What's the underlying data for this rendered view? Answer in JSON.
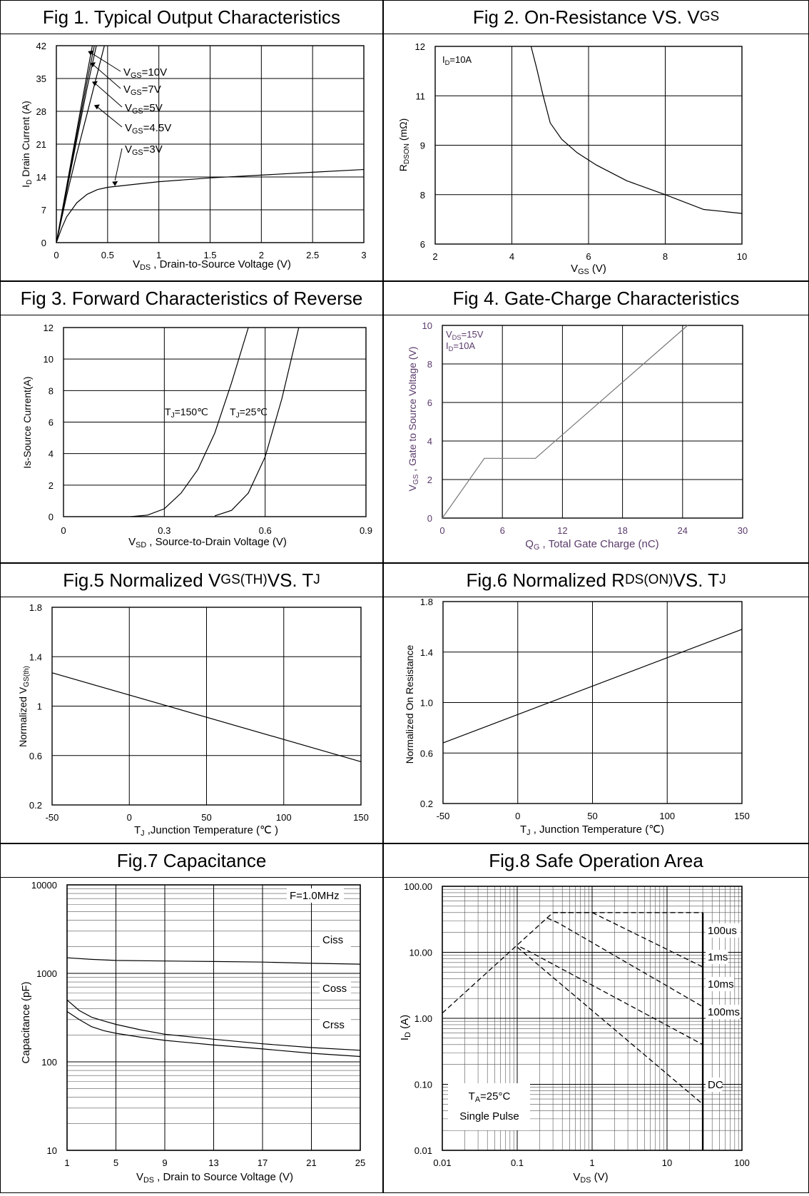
{
  "figures": {
    "fig1": {
      "title": "Fig 1. Typical Output Characteristics"
    },
    "fig2": {
      "title_main": "Fig 2. On-Resistance VS. V",
      "title_sub": "GS"
    },
    "fig3": {
      "title": "Fig 3. Forward Characteristics of Reverse"
    },
    "fig4": {
      "title": "Fig 4. Gate-Charge Characteristics"
    },
    "fig5": {
      "title_main": "Fig.5 Normalized V",
      "title_sub": "GS(TH)",
      "title_mid": " VS. T",
      "title_sub2": "J"
    },
    "fig6": {
      "title_main": "Fig.6 Normalized R",
      "title_sub": "DS(ON)",
      "title_mid": " VS. T",
      "title_sub2": "J"
    },
    "fig7": {
      "title": "Fig.7 Capacitance"
    },
    "fig8": {
      "title": "Fig.8 Safe Operation Area"
    }
  },
  "chart_data": [
    {
      "id": "fig1",
      "type": "line",
      "xlabel": "V_DS , Drain-to-Source Voltage (V)",
      "ylabel": "I_D Drain Current (A)",
      "xlim": [
        0,
        3
      ],
      "ylim": [
        0,
        42
      ],
      "xticks": [
        0,
        0.5,
        1,
        1.5,
        2,
        2.5,
        3
      ],
      "xtick_labels": [
        "0",
        "0.5",
        "1",
        "1.5",
        "2",
        "2.5",
        "3"
      ],
      "yticks": [
        0,
        7,
        14,
        21,
        28,
        35,
        42
      ],
      "grid": true,
      "series": [
        {
          "name": "V_GS=10V",
          "x": [
            0,
            0.1,
            0.2,
            0.3,
            0.36
          ],
          "y": [
            0,
            12,
            24,
            36,
            43
          ]
        },
        {
          "name": "V_GS=7V",
          "x": [
            0,
            0.1,
            0.2,
            0.3,
            0.38
          ],
          "y": [
            0,
            11.5,
            23,
            34.5,
            43
          ]
        },
        {
          "name": "V_GS=5V",
          "x": [
            0,
            0.1,
            0.2,
            0.3,
            0.4
          ],
          "y": [
            0,
            11,
            22,
            33,
            43
          ]
        },
        {
          "name": "V_GS=4.5V",
          "x": [
            0,
            0.1,
            0.2,
            0.3,
            0.48
          ],
          "y": [
            0,
            10,
            19,
            27.5,
            43
          ]
        },
        {
          "name": "V_GS=3V",
          "x": [
            0,
            0.05,
            0.1,
            0.2,
            0.3,
            0.4,
            0.5,
            0.75,
            1,
            1.5,
            2,
            2.5,
            3
          ],
          "y": [
            0,
            3,
            5.5,
            8.5,
            10.3,
            11.3,
            11.8,
            12.4,
            13,
            13.8,
            14.4,
            15,
            15.6
          ]
        }
      ]
    },
    {
      "id": "fig2",
      "type": "line",
      "xlabel": "V_GS (V)",
      "ylabel": "R_DSON (mΩ)",
      "annotation": "I_D=10A",
      "xlim": [
        2,
        10
      ],
      "ylim": [
        6,
        12
      ],
      "xticks": [
        2,
        4,
        6,
        8,
        10
      ],
      "yticks": [
        6,
        8,
        9,
        11,
        12
      ],
      "y_mapped_ticks": [
        [
          6,
          0
        ],
        [
          8,
          1
        ],
        [
          9,
          2
        ],
        [
          11,
          3
        ],
        [
          12,
          4
        ]
      ],
      "grid": true,
      "series": [
        {
          "name": "",
          "x": [
            4.5,
            4.65,
            4.8,
            5.0,
            5.3,
            5.7,
            6.2,
            7.0,
            8.0,
            9.0,
            10.0
          ],
          "y": [
            4.0,
            3.55,
            3.05,
            2.45,
            2.12,
            1.85,
            1.6,
            1.28,
            1.0,
            0.7,
            0.62
          ]
        }
      ]
    },
    {
      "id": "fig3",
      "type": "line",
      "xlabel": "V_SD , Source-to-Drain Voltage (V)",
      "ylabel": "Is-Source Current(A)",
      "xlim": [
        0,
        0.9
      ],
      "ylim": [
        0,
        12
      ],
      "xticks": [
        0,
        0.3,
        0.6,
        0.9
      ],
      "yticks": [
        0,
        2,
        4,
        6,
        8,
        10,
        12
      ],
      "grid": true,
      "series": [
        {
          "name": "T_J=150℃",
          "x": [
            0.2,
            0.25,
            0.3,
            0.35,
            0.4,
            0.45,
            0.5,
            0.55
          ],
          "y": [
            0,
            0.1,
            0.5,
            1.5,
            3,
            5.3,
            8.5,
            12
          ]
        },
        {
          "name": "T_J=25℃",
          "x": [
            0.45,
            0.5,
            0.55,
            0.6,
            0.65,
            0.7
          ],
          "y": [
            0.05,
            0.4,
            1.5,
            3.8,
            7.5,
            12
          ]
        }
      ]
    },
    {
      "id": "fig4",
      "type": "line",
      "xlabel": "Q_G , Total Gate Charge (nC)",
      "ylabel": "V_GS , Gate to Source Voltage (V)",
      "annotation": [
        "V_DS=15V",
        "I_D=10A"
      ],
      "xlim": [
        0,
        30
      ],
      "ylim": [
        0,
        10
      ],
      "xticks": [
        0,
        6,
        12,
        18,
        24,
        30
      ],
      "yticks": [
        0,
        2,
        4,
        6,
        8,
        10
      ],
      "grid": true,
      "series": [
        {
          "name": "",
          "x": [
            0,
            4.2,
            9.3,
            24.5
          ],
          "y": [
            0,
            3.1,
            3.1,
            10
          ]
        }
      ]
    },
    {
      "id": "fig5",
      "type": "line",
      "xlabel": "T_J ,Junction Temperature (℃ )",
      "ylabel": "Normalized V_GS(th)",
      "xlim": [
        -50,
        150
      ],
      "ylim": [
        0.2,
        1.8
      ],
      "xticks": [
        -50,
        0,
        50,
        100,
        150
      ],
      "yticks": [
        0.2,
        0.6,
        1,
        1.4,
        1.8
      ],
      "ytick_labels": [
        "0.2",
        "0.6",
        "1",
        "1.4",
        "1.8"
      ],
      "grid": true,
      "series": [
        {
          "name": "",
          "x": [
            -50,
            150
          ],
          "y": [
            1.27,
            0.55
          ]
        }
      ]
    },
    {
      "id": "fig6",
      "type": "line",
      "xlabel": "T_J , Junction Temperature (℃)",
      "ylabel": "Normalized On Resistance",
      "xlim": [
        -50,
        150
      ],
      "ylim": [
        0.2,
        1.8
      ],
      "xticks": [
        -50,
        0,
        50,
        100,
        150
      ],
      "yticks": [
        0.2,
        0.6,
        1.0,
        1.4,
        1.8
      ],
      "ytick_labels": [
        "0.2",
        "0.6",
        "1.0",
        "1.4",
        "1.8"
      ],
      "grid": true,
      "series": [
        {
          "name": "",
          "x": [
            -50,
            150
          ],
          "y": [
            0.68,
            1.58
          ]
        }
      ]
    },
    {
      "id": "fig7",
      "type": "line",
      "xlabel": "V_DS , Drain to Source Voltage (V)",
      "ylabel": "Capacitance (pF)",
      "annotation": "F=1.0MHz",
      "xscale": "linear",
      "yscale": "log",
      "xlim": [
        1,
        25
      ],
      "ylim": [
        10,
        10000
      ],
      "xticks": [
        1,
        5,
        9,
        13,
        17,
        21,
        25
      ],
      "yticks": [
        10,
        100,
        1000,
        10000
      ],
      "grid": true,
      "series": [
        {
          "name": "Ciss",
          "x": [
            1,
            3,
            5,
            9,
            13,
            17,
            21,
            25
          ],
          "y": [
            1500,
            1440,
            1400,
            1380,
            1360,
            1340,
            1300,
            1270
          ]
        },
        {
          "name": "Coss",
          "x": [
            1,
            2,
            3,
            4,
            5,
            7,
            9,
            13,
            17,
            21,
            25
          ],
          "y": [
            500,
            380,
            320,
            290,
            265,
            230,
            205,
            180,
            160,
            145,
            135
          ]
        },
        {
          "name": "Crss",
          "x": [
            1,
            2,
            3,
            4,
            5,
            7,
            9,
            13,
            17,
            21,
            25
          ],
          "y": [
            370,
            300,
            250,
            225,
            210,
            190,
            175,
            155,
            140,
            125,
            115
          ]
        }
      ]
    },
    {
      "id": "fig8",
      "type": "line",
      "xlabel": "V_DS (V)",
      "ylabel": "I_D (A)",
      "annotation": [
        "T_A=25°C",
        "Single  Pulse"
      ],
      "xscale": "log",
      "yscale": "log",
      "xlim": [
        0.01,
        100
      ],
      "ylim": [
        0.01,
        100
      ],
      "xticks": [
        0.01,
        0.1,
        1,
        10,
        100
      ],
      "xtick_labels": [
        "0.01",
        "0.1",
        "1",
        "10",
        "100"
      ],
      "yticks": [
        0.01,
        0.1,
        1,
        10,
        100
      ],
      "ytick_labels": [
        "0.01",
        "0.10",
        "1.00",
        "10.00",
        "100.00"
      ],
      "grid": true,
      "series": [
        {
          "name": "100us",
          "x": [
            0.01,
            0.3,
            3,
            30
          ],
          "y": [
            1.2,
            40,
            40,
            40
          ]
        },
        {
          "name": "1ms",
          "x": [
            0.3,
            1.0,
            30
          ],
          "y": [
            40,
            40,
            6
          ]
        },
        {
          "name": "10ms",
          "x": [
            0.25,
            0.35,
            30
          ],
          "y": [
            33,
            28,
            1.5
          ]
        },
        {
          "name": "100ms",
          "x": [
            0.11,
            0.13,
            30
          ],
          "y": [
            12,
            11,
            0.4
          ]
        },
        {
          "name": "DC",
          "x": [
            0.1,
            30
          ],
          "y": [
            12,
            0.05
          ]
        }
      ]
    }
  ]
}
